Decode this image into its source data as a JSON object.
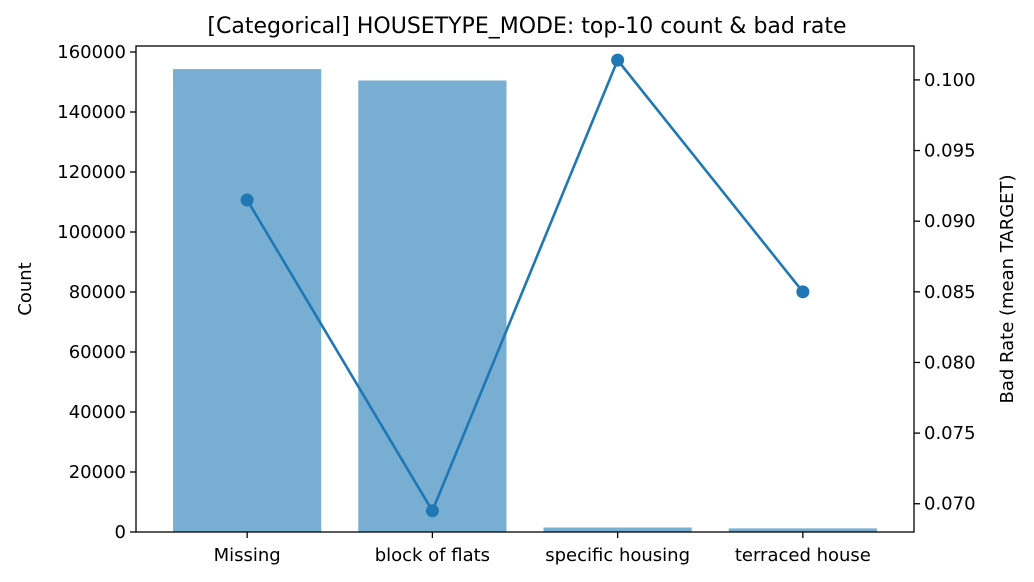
{
  "chart_data": {
    "type": "bar",
    "title": "[Categorical] HOUSETYPE_MODE: top-10 count & bad rate",
    "categories": [
      "Missing",
      "block of flats",
      "specific housing",
      "terraced house"
    ],
    "series": [
      {
        "name": "Count",
        "type": "bar",
        "axis": "left",
        "values": [
          154300,
          150500,
          1500,
          1200
        ],
        "color": "#77aed2"
      },
      {
        "name": "Bad Rate (mean TARGET)",
        "type": "line",
        "axis": "right",
        "values": [
          0.0915,
          0.0695,
          0.1014,
          0.085
        ],
        "color": "#1f77b4"
      }
    ],
    "xlabel": "",
    "ylabel": "Count",
    "y2label": "Bad Rate (mean TARGET)",
    "ylim": [
      0,
      162000
    ],
    "y2lim": [
      0.068,
      0.1024
    ],
    "yticks": [
      0,
      20000,
      40000,
      60000,
      80000,
      100000,
      120000,
      140000,
      160000
    ],
    "y2ticks": [
      0.07,
      0.075,
      0.08,
      0.085,
      0.09,
      0.095,
      0.1
    ],
    "y2tick_labels": [
      "0.070",
      "0.075",
      "0.080",
      "0.085",
      "0.090",
      "0.095",
      "0.100"
    ],
    "grid": false,
    "legend": "none"
  }
}
